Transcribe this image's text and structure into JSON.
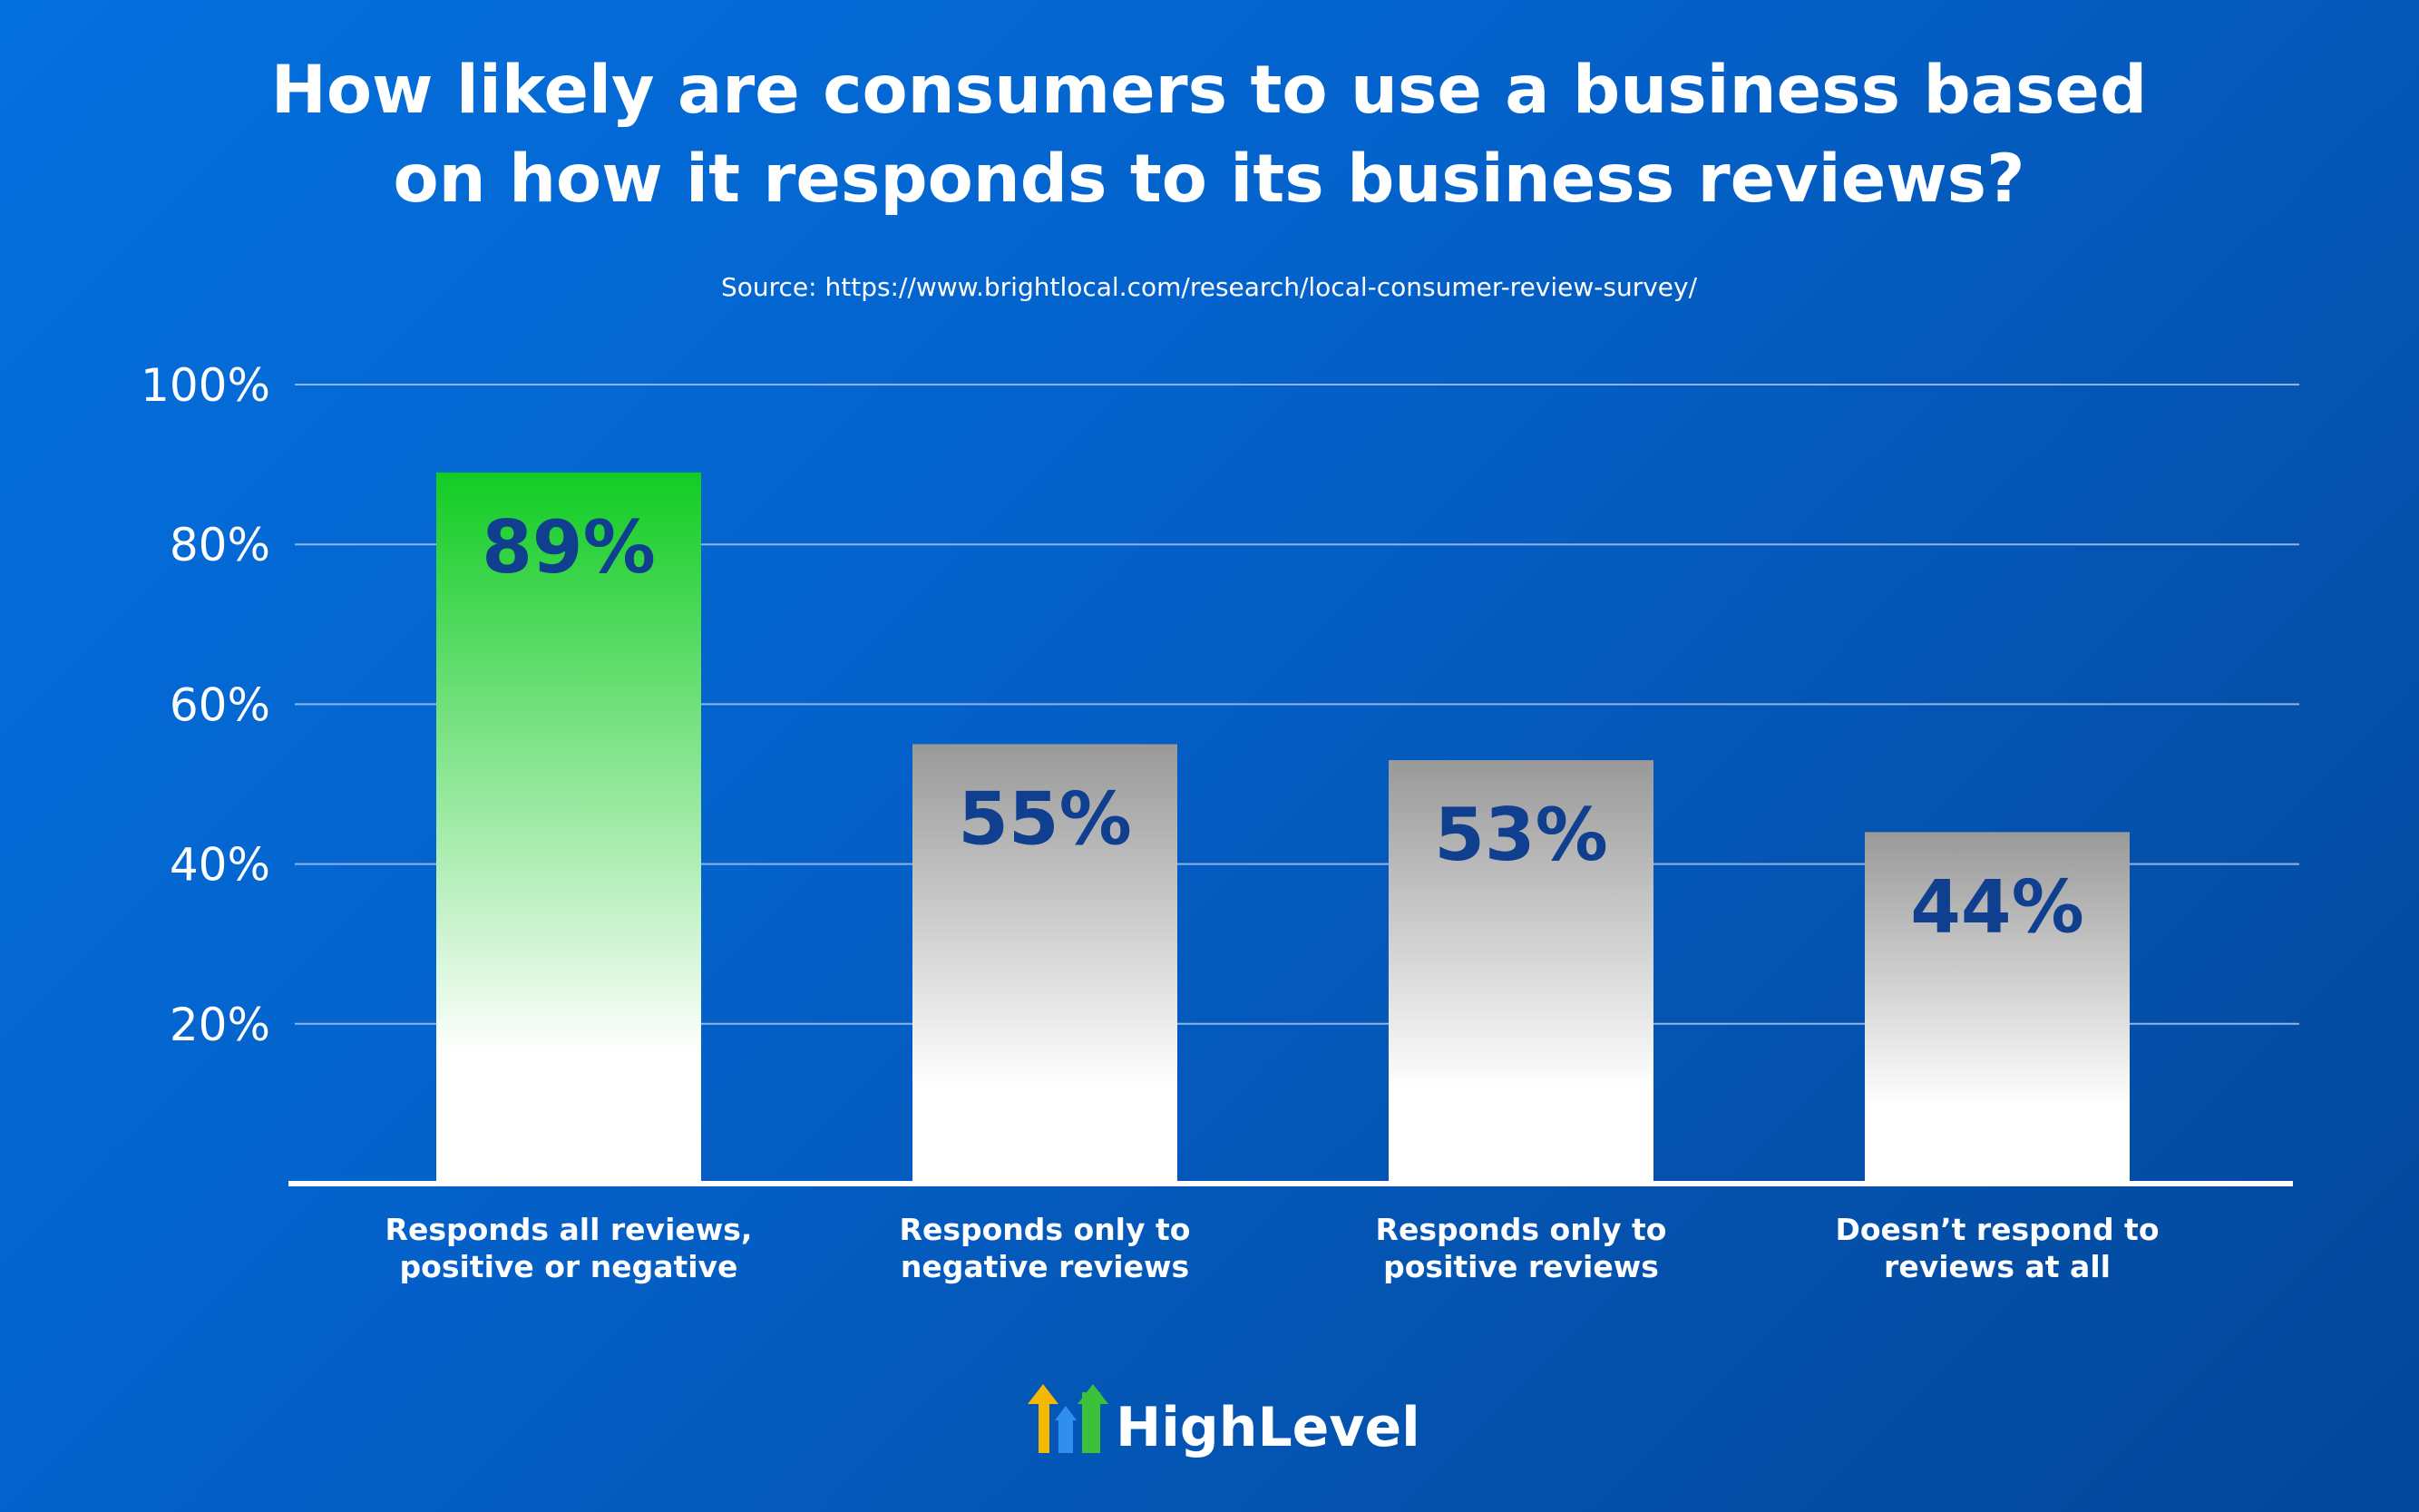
{
  "chart_data": {
    "type": "bar",
    "title_lines": [
      "How likely are consumers to use a business based",
      "on how it responds to its business reviews?"
    ],
    "source": "Source: https://www.brightlocal.com/research/local-consumer-review-survey/",
    "categories": [
      [
        "Responds all reviews,",
        "positive or negative"
      ],
      [
        "Responds only to",
        "negative reviews"
      ],
      [
        "Responds only to",
        "positive reviews"
      ],
      [
        "Doesn’t respond to",
        "reviews at all"
      ]
    ],
    "values": [
      89,
      55,
      53,
      44
    ],
    "value_labels": [
      "89%",
      "55%",
      "53%",
      "44%"
    ],
    "ylim": [
      0,
      100
    ],
    "yticks": [
      20,
      40,
      60,
      80,
      100
    ],
    "ytick_labels": [
      "20%",
      "40%",
      "60%",
      "80%",
      "100%"
    ],
    "grid": true,
    "highlight_index": 0,
    "colors": {
      "highlight_top": "#11cc22",
      "highlight_bottom": "#ffffff",
      "bar_top": "#999999",
      "bar_bottom": "#ffffff",
      "value_label": "#0f3f8e",
      "gridline": "#8fb4ea",
      "axis": "#ffffff"
    }
  },
  "brand": {
    "name": "HighLevel",
    "logo": "highlevel-arrows-icon",
    "colors": [
      "#f5b800",
      "#2f8ef0",
      "#3cc13b"
    ]
  }
}
